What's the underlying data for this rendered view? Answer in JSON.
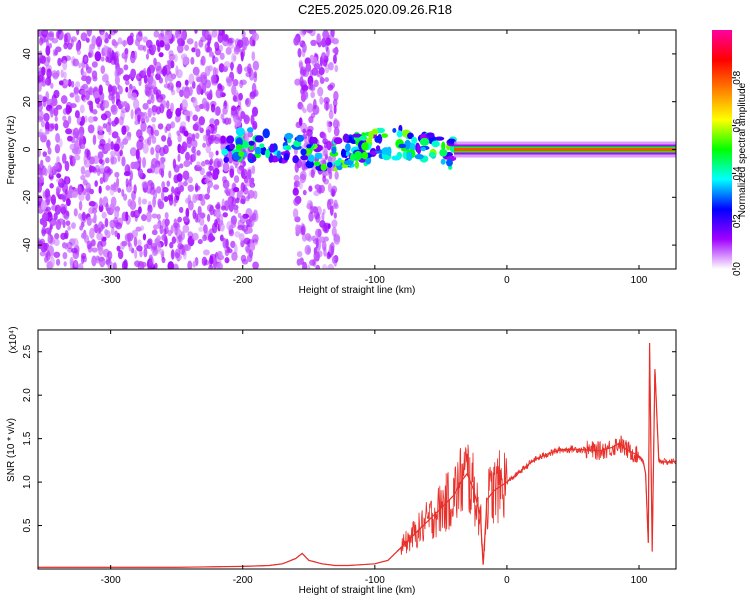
{
  "figure": {
    "title": "C2E5.2025.020.09.26.R18"
  },
  "chart_data": [
    {
      "type": "heatmap",
      "title": "",
      "xlabel": "Height of straight line (km)",
      "ylabel": "Frequency (Hz)",
      "xlim": [
        -355,
        128
      ],
      "ylim": [
        -50,
        50
      ],
      "xticks": [
        -300,
        -200,
        -100,
        0,
        100
      ],
      "xtick_labels": [
        "-300",
        "-200",
        "-100",
        "0",
        "100"
      ],
      "yticks": [
        -40,
        -20,
        0,
        20,
        40
      ],
      "ytick_labels": [
        "-40",
        "-20",
        "0",
        "20",
        "40"
      ],
      "colorbar": {
        "label": "Normalized spectral amplitude",
        "range": [
          0,
          1
        ],
        "ticks": [
          0.0,
          0.2,
          0.4,
          0.6,
          0.8
        ],
        "tick_labels": [
          "0.0",
          "0.2",
          "0.4",
          "0.6",
          "0.8"
        ],
        "colors": [
          "#ffffff",
          "#a000ff",
          "#0000ff",
          "#00ffff",
          "#00ff00",
          "#ffff00",
          "#ff8000",
          "#ff0000",
          "#ff00a0"
        ]
      },
      "regions": [
        {
          "x": [
            -355,
            -190
          ],
          "y": [
            -50,
            50
          ],
          "intensity": 0.25,
          "description": "noise"
        },
        {
          "x": [
            -160,
            -128
          ],
          "y": [
            -50,
            50
          ],
          "intensity": 0.2,
          "description": "noise"
        },
        {
          "x": [
            -215,
            -40
          ],
          "y": [
            -8,
            8
          ],
          "intensity": 0.45
        },
        {
          "x": [
            -40,
            128
          ],
          "y": [
            -2,
            2
          ],
          "intensity": 0.8
        }
      ],
      "grid": false
    },
    {
      "type": "line",
      "title": "",
      "xlabel": "Height of straight line (km)",
      "ylabel": "SNR (10 * v/v)",
      "y_multiplier_label": "(x10⁴)",
      "xlim": [
        -355,
        128
      ],
      "ylim": [
        0,
        2.75
      ],
      "xticks": [
        -300,
        -200,
        -100,
        0,
        100
      ],
      "xtick_labels": [
        "-300",
        "-200",
        "-100",
        "0",
        "100"
      ],
      "yticks": [
        0.5,
        1.0,
        1.5,
        2.0,
        2.5
      ],
      "ytick_labels": [
        "0.5",
        "1.0",
        "1.5",
        "2.0",
        "2.5"
      ],
      "series": [
        {
          "color": "#e8302a",
          "x": [
            -355,
            -300,
            -250,
            -200,
            -180,
            -170,
            -160,
            -155,
            -150,
            -140,
            -130,
            -120,
            -110,
            -100,
            -90,
            -80,
            -70,
            -60,
            -50,
            -40,
            -35,
            -30,
            -25,
            -20,
            -18,
            -15,
            -10,
            -5,
            0,
            10,
            20,
            30,
            40,
            50,
            60,
            70,
            80,
            85,
            90,
            95,
            100,
            103,
            105,
            107,
            108,
            110,
            112,
            115,
            120,
            128
          ],
          "y": [
            0.02,
            0.02,
            0.02,
            0.03,
            0.04,
            0.06,
            0.12,
            0.18,
            0.1,
            0.06,
            0.04,
            0.04,
            0.05,
            0.06,
            0.1,
            0.25,
            0.4,
            0.55,
            0.7,
            0.85,
            1.0,
            1.1,
            0.9,
            0.6,
            0.05,
            0.8,
            0.9,
            0.95,
            1.0,
            1.12,
            1.25,
            1.32,
            1.37,
            1.38,
            1.37,
            1.36,
            1.4,
            1.45,
            1.38,
            1.34,
            1.3,
            1.25,
            1.1,
            0.3,
            2.6,
            0.2,
            2.3,
            1.25,
            1.23,
            1.24
          ]
        }
      ],
      "grid": false
    }
  ]
}
